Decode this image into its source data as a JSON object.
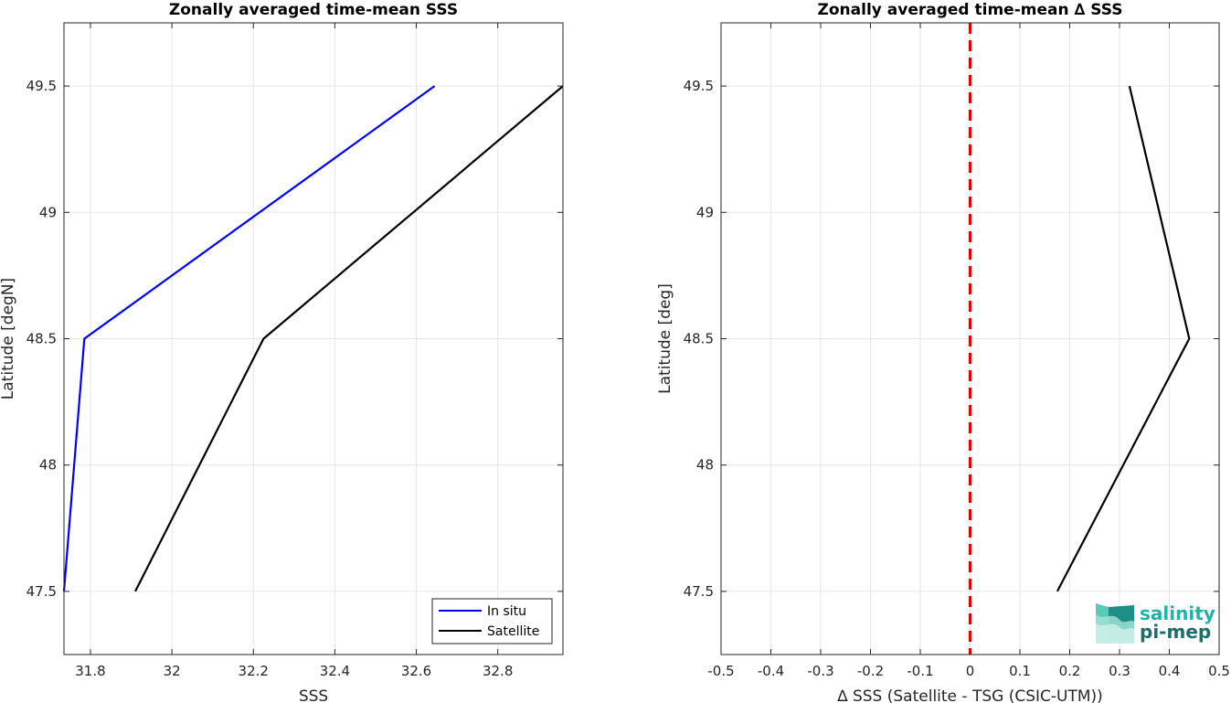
{
  "chart_data": [
    {
      "type": "line",
      "title": "Zonally averaged time-mean SSS",
      "xlabel": "SSS",
      "ylabel": "Latitude [degN]",
      "xlim": [
        31.735,
        32.96
      ],
      "ylim": [
        47.25,
        49.75
      ],
      "xticks": [
        31.8,
        32,
        32.2,
        32.4,
        32.6,
        32.8
      ],
      "xtick_labels": [
        "31.8",
        "32",
        "32.2",
        "32.4",
        "32.6",
        "32.8"
      ],
      "yticks": [
        47.5,
        48,
        48.5,
        49,
        49.5
      ],
      "ytick_labels": [
        "47.5",
        "48",
        "48.5",
        "49",
        "49.5"
      ],
      "grid": true,
      "legend_position": "bottom-right",
      "series": [
        {
          "name": "In situ",
          "color": "#0000ff",
          "x": [
            31.735,
            31.785,
            32.645
          ],
          "y": [
            47.5,
            48.5,
            49.5
          ]
        },
        {
          "name": "Satellite",
          "color": "#000000",
          "x": [
            31.91,
            32.225,
            32.96
          ],
          "y": [
            47.5,
            48.5,
            49.5
          ]
        }
      ]
    },
    {
      "type": "line",
      "title": "Zonally averaged time-mean ∆ SSS",
      "xlabel": "∆ SSS (Satellite - TSG (CSIC-UTM))",
      "ylabel": "Latitude [deg]",
      "xlim": [
        -0.5,
        0.5
      ],
      "ylim": [
        47.25,
        49.75
      ],
      "xticks": [
        -0.5,
        -0.4,
        -0.3,
        -0.2,
        -0.1,
        0,
        0.1,
        0.2,
        0.3,
        0.4,
        0.5
      ],
      "xtick_labels": [
        "-0.5",
        "-0.4",
        "-0.3",
        "-0.2",
        "-0.1",
        "0",
        "0.1",
        "0.2",
        "0.3",
        "0.4",
        "0.5"
      ],
      "yticks": [
        47.5,
        48,
        48.5,
        49,
        49.5
      ],
      "ytick_labels": [
        "47.5",
        "48",
        "48.5",
        "49",
        "49.5"
      ],
      "grid": true,
      "reference_line": {
        "x": 0,
        "color": "#e00000",
        "style": "dashed"
      },
      "series": [
        {
          "color": "#000000",
          "x": [
            0.175,
            0.44,
            0.32
          ],
          "y": [
            47.5,
            48.5,
            49.5
          ]
        }
      ]
    }
  ],
  "logo": {
    "line1": "salinity",
    "line2": "pi-mep",
    "color1": "#21b3a6",
    "color2": "#1a6f6a"
  }
}
